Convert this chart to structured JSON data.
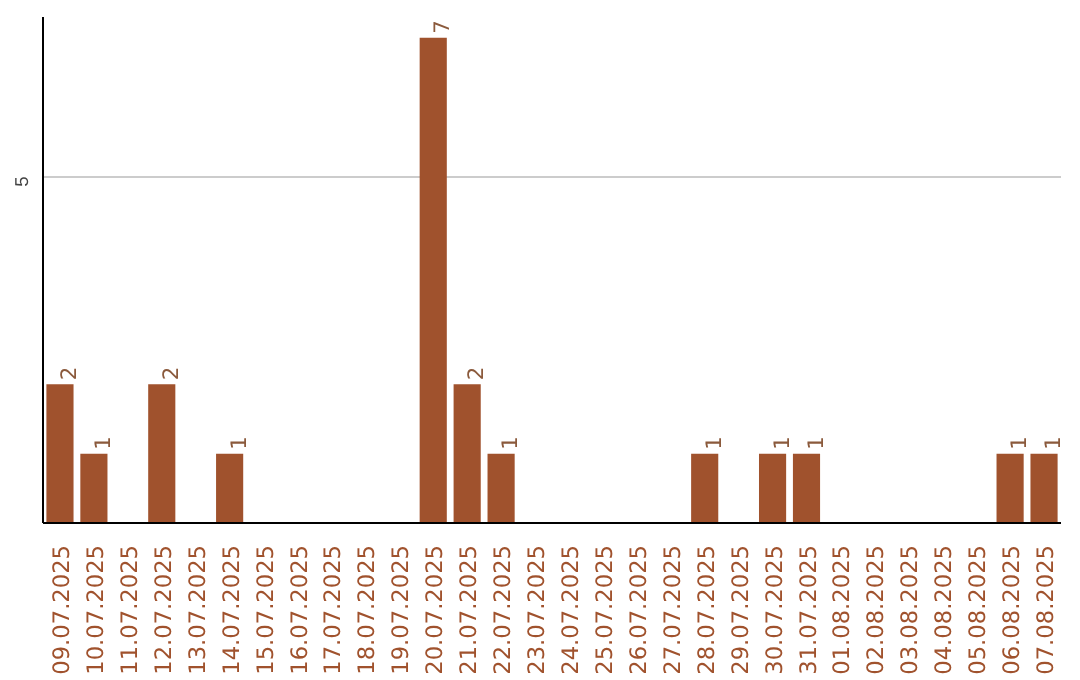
{
  "chart_data": {
    "type": "bar",
    "categories": [
      "09.07.2025",
      "10.07.2025",
      "11.07.2025",
      "12.07.2025",
      "13.07.2025",
      "14.07.2025",
      "15.07.2025",
      "16.07.2025",
      "17.07.2025",
      "18.07.2025",
      "19.07.2025",
      "20.07.2025",
      "21.07.2025",
      "22.07.2025",
      "23.07.2025",
      "24.07.2025",
      "25.07.2025",
      "26.07.2025",
      "27.07.2025",
      "28.07.2025",
      "29.07.2025",
      "30.07.2025",
      "31.07.2025",
      "01.08.2025",
      "02.08.2025",
      "03.08.2025",
      "04.08.2025",
      "05.08.2025",
      "06.08.2025",
      "07.08.2025"
    ],
    "values": [
      2,
      1,
      0,
      2,
      0,
      1,
      0,
      0,
      0,
      0,
      0,
      7,
      2,
      1,
      0,
      0,
      0,
      0,
      0,
      1,
      0,
      1,
      1,
      0,
      0,
      0,
      0,
      0,
      1,
      1
    ],
    "value_labels": [
      "2",
      "1",
      null,
      "2",
      null,
      "1",
      null,
      null,
      null,
      null,
      null,
      "7",
      "2",
      "1",
      null,
      null,
      null,
      null,
      null,
      "1",
      null,
      "1",
      "1",
      null,
      null,
      null,
      null,
      null,
      "1",
      "1"
    ],
    "color": "#a0522d",
    "ylim": [
      0,
      7.3
    ],
    "yticks": [
      5
    ],
    "grid": "y"
  }
}
